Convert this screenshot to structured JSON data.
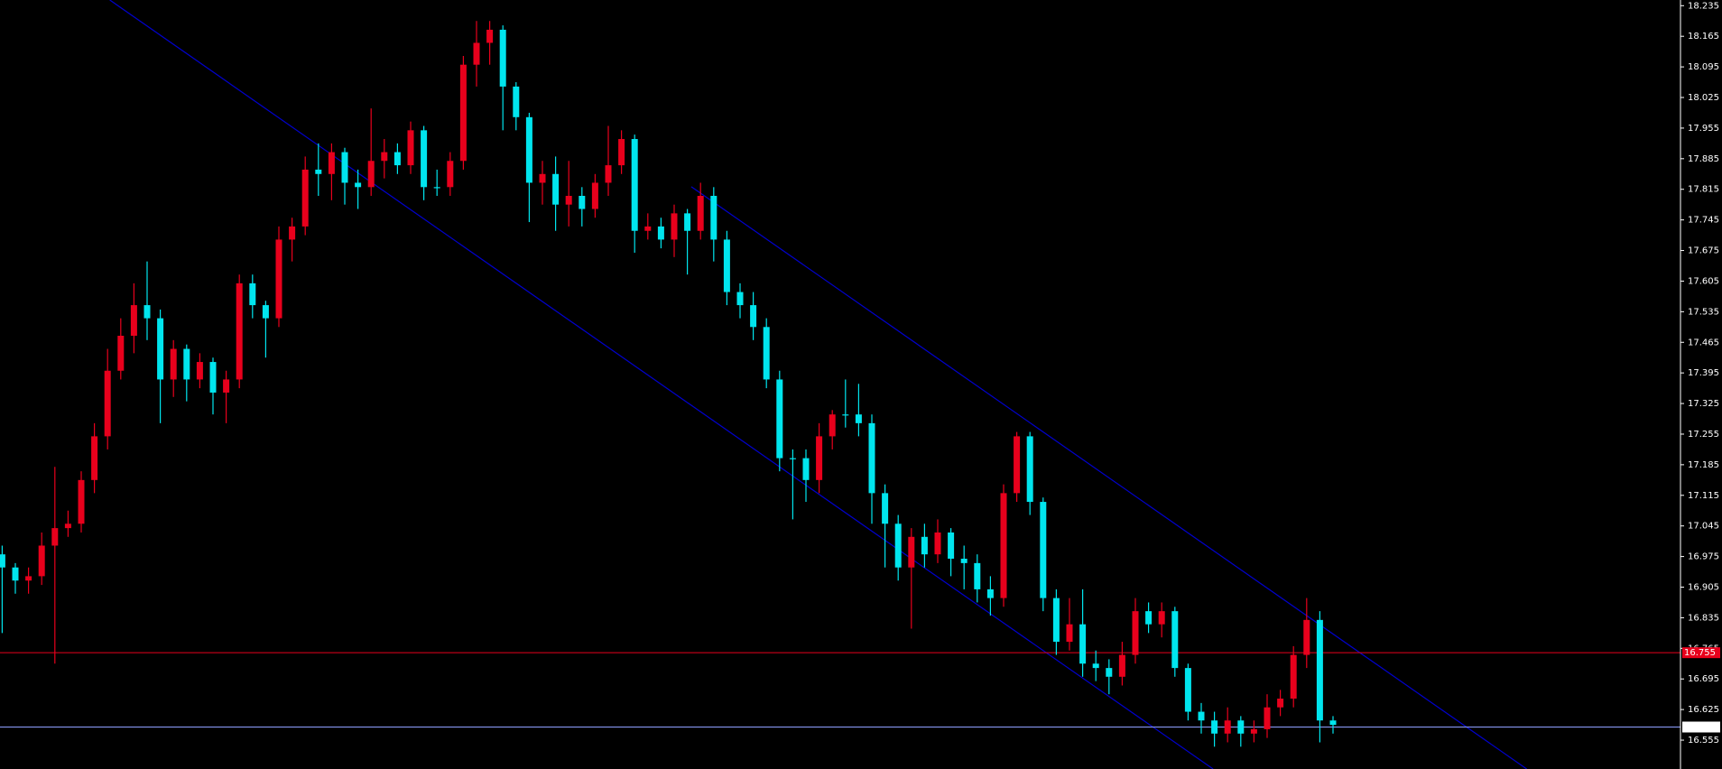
{
  "chart_data": {
    "type": "candlestick",
    "up_color": "#e8001c",
    "down_color": "#00e5ee",
    "background": "#000000",
    "open": [
      16.98,
      16.95,
      16.92,
      16.93,
      17.0,
      17.04,
      17.05,
      17.15,
      17.25,
      17.4,
      17.48,
      17.55,
      17.52,
      17.38,
      17.45,
      17.38,
      17.42,
      17.35,
      17.38,
      17.6,
      17.55,
      17.52,
      17.7,
      17.73,
      17.86,
      17.85,
      17.9,
      17.83,
      17.82,
      17.88,
      17.9,
      17.87,
      17.95,
      17.82,
      17.82,
      17.88,
      18.1,
      18.15,
      18.18,
      18.05,
      17.98,
      17.83,
      17.85,
      17.78,
      17.8,
      17.77,
      17.83,
      17.87,
      17.93,
      17.72,
      17.73,
      17.7,
      17.76,
      17.72,
      17.8,
      17.7,
      17.58,
      17.55,
      17.5,
      17.38,
      17.2,
      17.2,
      17.15,
      17.25,
      17.3,
      17.3,
      17.28,
      17.12,
      17.05,
      16.95,
      17.02,
      16.98,
      17.03,
      16.97,
      16.96,
      16.9,
      16.88,
      17.12,
      17.25,
      17.1,
      16.88,
      16.78,
      16.82,
      16.73,
      16.72,
      16.7,
      16.75,
      16.85,
      16.82,
      16.85,
      16.72,
      16.62,
      16.6,
      16.57,
      16.6,
      16.57,
      16.58,
      16.63,
      16.65,
      16.75,
      16.83,
      16.6
    ],
    "high": [
      17.0,
      16.96,
      16.95,
      17.03,
      17.18,
      17.08,
      17.17,
      17.28,
      17.45,
      17.52,
      17.6,
      17.65,
      17.54,
      17.47,
      17.46,
      17.44,
      17.43,
      17.4,
      17.62,
      17.62,
      17.56,
      17.73,
      17.75,
      17.89,
      17.92,
      17.92,
      17.91,
      17.86,
      18.0,
      17.93,
      17.92,
      17.97,
      17.96,
      17.86,
      17.9,
      18.12,
      18.2,
      18.2,
      18.19,
      18.06,
      17.99,
      17.88,
      17.89,
      17.88,
      17.82,
      17.85,
      17.96,
      17.95,
      17.94,
      17.76,
      17.75,
      17.78,
      17.77,
      17.83,
      17.82,
      17.72,
      17.6,
      17.58,
      17.52,
      17.4,
      17.22,
      17.22,
      17.28,
      17.31,
      17.38,
      17.37,
      17.3,
      17.14,
      17.07,
      17.04,
      17.05,
      17.06,
      17.04,
      17.0,
      16.98,
      16.93,
      17.14,
      17.26,
      17.26,
      17.11,
      16.9,
      16.88,
      16.9,
      16.76,
      16.74,
      16.78,
      16.88,
      16.87,
      16.87,
      16.86,
      16.73,
      16.64,
      16.62,
      16.63,
      16.61,
      16.6,
      16.66,
      16.67,
      16.77,
      16.88,
      16.85,
      16.61
    ],
    "low": [
      16.8,
      16.89,
      16.89,
      16.91,
      16.73,
      17.02,
      17.03,
      17.12,
      17.22,
      17.38,
      17.44,
      17.47,
      17.28,
      17.34,
      17.33,
      17.36,
      17.3,
      17.28,
      17.36,
      17.52,
      17.43,
      17.5,
      17.65,
      17.71,
      17.8,
      17.79,
      17.78,
      17.77,
      17.8,
      17.84,
      17.85,
      17.85,
      17.79,
      17.8,
      17.8,
      17.86,
      18.05,
      18.1,
      17.95,
      17.95,
      17.74,
      17.78,
      17.72,
      17.73,
      17.73,
      17.75,
      17.8,
      17.85,
      17.67,
      17.7,
      17.68,
      17.66,
      17.62,
      17.7,
      17.65,
      17.55,
      17.52,
      17.47,
      17.36,
      17.17,
      17.06,
      17.1,
      17.12,
      17.22,
      17.27,
      17.25,
      17.05,
      16.95,
      16.92,
      16.81,
      16.95,
      16.96,
      16.93,
      16.9,
      16.87,
      16.84,
      16.86,
      17.1,
      17.07,
      16.85,
      16.75,
      16.76,
      16.7,
      16.69,
      16.66,
      16.68,
      16.73,
      16.8,
      16.79,
      16.7,
      16.6,
      16.57,
      16.54,
      16.55,
      16.54,
      16.55,
      16.56,
      16.61,
      16.63,
      16.72,
      16.55,
      16.57
    ],
    "close": [
      16.95,
      16.92,
      16.93,
      17.0,
      17.04,
      17.05,
      17.15,
      17.25,
      17.4,
      17.48,
      17.55,
      17.52,
      17.38,
      17.45,
      17.38,
      17.42,
      17.35,
      17.38,
      17.6,
      17.55,
      17.52,
      17.7,
      17.73,
      17.86,
      17.85,
      17.9,
      17.83,
      17.82,
      17.88,
      17.9,
      17.87,
      17.95,
      17.82,
      17.82,
      17.88,
      18.1,
      18.15,
      18.18,
      18.05,
      17.98,
      17.83,
      17.85,
      17.78,
      17.8,
      17.77,
      17.83,
      17.87,
      17.93,
      17.72,
      17.73,
      17.7,
      17.76,
      17.72,
      17.8,
      17.7,
      17.58,
      17.55,
      17.5,
      17.38,
      17.2,
      17.2,
      17.15,
      17.25,
      17.3,
      17.3,
      17.28,
      17.12,
      17.05,
      16.95,
      17.02,
      16.98,
      17.03,
      16.97,
      16.96,
      16.9,
      16.88,
      17.12,
      17.25,
      17.1,
      16.88,
      16.78,
      16.82,
      16.73,
      16.72,
      16.7,
      16.75,
      16.85,
      16.82,
      16.85,
      16.72,
      16.62,
      16.6,
      16.57,
      16.6,
      16.57,
      16.58,
      16.63,
      16.65,
      16.75,
      16.83,
      16.6,
      16.59
    ],
    "ylim": [
      16.489,
      18.248
    ],
    "yticks": [
      18.235,
      18.165,
      18.095,
      18.025,
      17.955,
      17.885,
      17.815,
      17.745,
      17.675,
      17.605,
      17.535,
      17.465,
      17.395,
      17.325,
      17.255,
      17.185,
      17.115,
      17.045,
      16.975,
      16.905,
      16.835,
      16.765,
      16.695,
      16.625,
      16.555
    ],
    "levels": [
      {
        "value": 16.755,
        "color": "#e8001c"
      },
      {
        "value": 16.585,
        "color": "#8fa0ff"
      }
    ],
    "trendlines": [
      {
        "x": [
          8.17,
          91.9
        ],
        "y": [
          18.248,
          16.489
        ],
        "color": "#0000cd"
      },
      {
        "x": [
          52.3,
          115.7
        ],
        "y": [
          17.821,
          16.489
        ],
        "color": "#0000cd"
      }
    ]
  }
}
